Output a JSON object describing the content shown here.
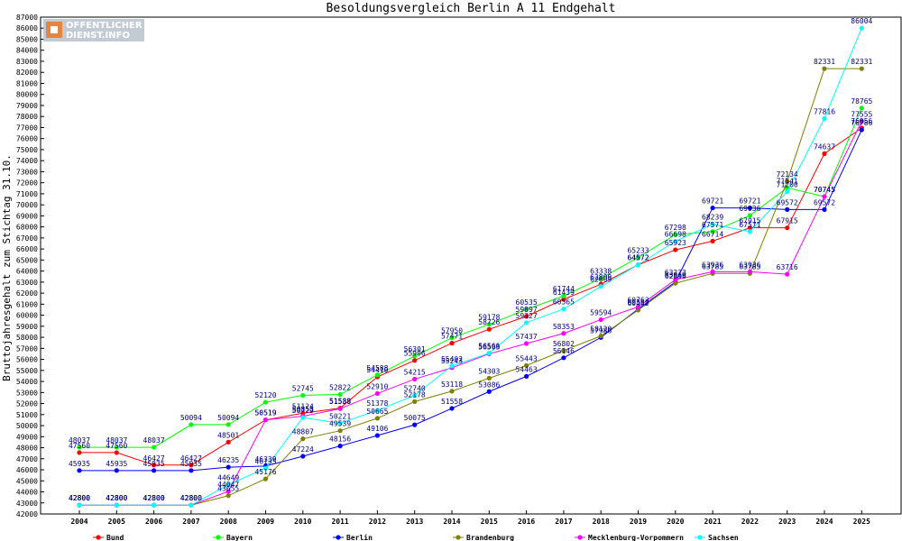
{
  "logo": {
    "line1": "OFFENTLICHER",
    "line2": "DIENST.INFO"
  },
  "chart_data": {
    "type": "line",
    "title": "Besoldungsvergleich Berlin A 11 Endgehalt",
    "xlabel": "",
    "ylabel": "Bruttojahresgehalt zum Stichtag 31.10.",
    "ylim": [
      42000,
      87000
    ],
    "y_tick_step": 1000,
    "grid": false,
    "legend_position": "bottom",
    "categories": [
      "2004",
      "2005",
      "2006",
      "2007",
      "2008",
      "2009",
      "2010",
      "2011",
      "2012",
      "2013",
      "2014",
      "2015",
      "2016",
      "2017",
      "2018",
      "2019",
      "2020",
      "2021",
      "2022",
      "2023",
      "2024",
      "2025"
    ],
    "series": [
      {
        "name": "Bund",
        "color": "#ff0000",
        "values": [
          47560,
          47560,
          46427,
          46427,
          48501,
          50519,
          51124,
          51589,
          54410,
          55906,
          57471,
          58726,
          59897,
          61439,
          62809,
          64572,
          65923,
          66714,
          67915,
          67915,
          74637,
          76956
        ]
      },
      {
        "name": "Bayern",
        "color": "#00ff00",
        "values": [
          48037,
          48037,
          48037,
          50094,
          50094,
          52120,
          52745,
          52822,
          54588,
          56301,
          57950,
          59178,
          60535,
          61744,
          63338,
          65233,
          67298,
          67571,
          69036,
          71541,
          70745,
          78765
        ]
      },
      {
        "name": "Berlin",
        "color": "#0000ff",
        "values": [
          45935,
          45935,
          45935,
          45935,
          46235,
          46339,
          47224,
          48156,
          49106,
          50075,
          51558,
          53086,
          54463,
          56146,
          57986,
          60553,
          63019,
          69721,
          69721,
          69572,
          69572,
          76786
        ]
      },
      {
        "name": "Brandenburg",
        "color": "#808000",
        "values": [
          42800,
          42800,
          42800,
          42800,
          43655,
          45176,
          48807,
          49539,
          50665,
          52178,
          53118,
          54303,
          55443,
          56802,
          58120,
          60462,
          62896,
          63785,
          63785,
          72134,
          82331,
          82331
        ]
      },
      {
        "name": "Mecklenburg-Vorpommern",
        "color": "#ff00ff",
        "values": [
          42800,
          42800,
          42800,
          42800,
          44047,
          50519,
          50853,
          51538,
          52910,
          54215,
          55243,
          56503,
          57437,
          58353,
          59594,
          60763,
          63223,
          63936,
          63936,
          63716,
          70745,
          77555
        ]
      },
      {
        "name": "Sachsen",
        "color": "#00ffff",
        "values": [
          42800,
          42800,
          42800,
          42800,
          44649,
          46135,
          50729,
          50221,
          51378,
          52740,
          55402,
          56566,
          59327,
          60565,
          62609,
          64572,
          66698,
          68239,
          67571,
          71200,
          77816,
          86004
        ]
      }
    ]
  }
}
